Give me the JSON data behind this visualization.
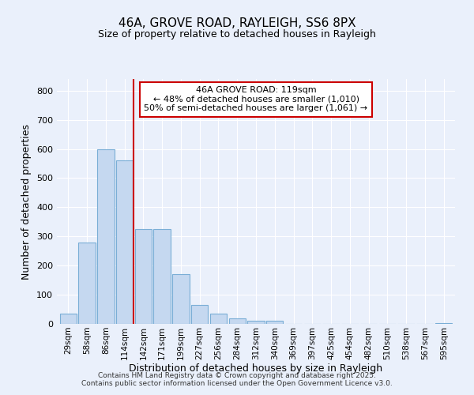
{
  "title1": "46A, GROVE ROAD, RAYLEIGH, SS6 8PX",
  "title2": "Size of property relative to detached houses in Rayleigh",
  "xlabel": "Distribution of detached houses by size in Rayleigh",
  "ylabel": "Number of detached properties",
  "categories": [
    "29sqm",
    "58sqm",
    "86sqm",
    "114sqm",
    "142sqm",
    "171sqm",
    "199sqm",
    "227sqm",
    "256sqm",
    "284sqm",
    "312sqm",
    "340sqm",
    "369sqm",
    "397sqm",
    "425sqm",
    "454sqm",
    "482sqm",
    "510sqm",
    "538sqm",
    "567sqm",
    "595sqm"
  ],
  "values": [
    35,
    280,
    600,
    560,
    325,
    325,
    170,
    65,
    35,
    20,
    10,
    10,
    0,
    0,
    0,
    0,
    0,
    0,
    0,
    0,
    3
  ],
  "bar_color": "#c5d8f0",
  "bar_edge_color": "#7aaed6",
  "background_color": "#eaf0fb",
  "grid_color": "#ffffff",
  "vline_color": "#cc0000",
  "vline_x_index": 3,
  "annotation_text": "46A GROVE ROAD: 119sqm\n← 48% of detached houses are smaller (1,010)\n50% of semi-detached houses are larger (1,061) →",
  "annotation_box_color": "#ffffff",
  "annotation_box_edge_color": "#cc0000",
  "ylim": [
    0,
    840
  ],
  "yticks": [
    0,
    100,
    200,
    300,
    400,
    500,
    600,
    700,
    800
  ],
  "footer": "Contains HM Land Registry data © Crown copyright and database right 2025.\nContains public sector information licensed under the Open Government Licence v3.0."
}
